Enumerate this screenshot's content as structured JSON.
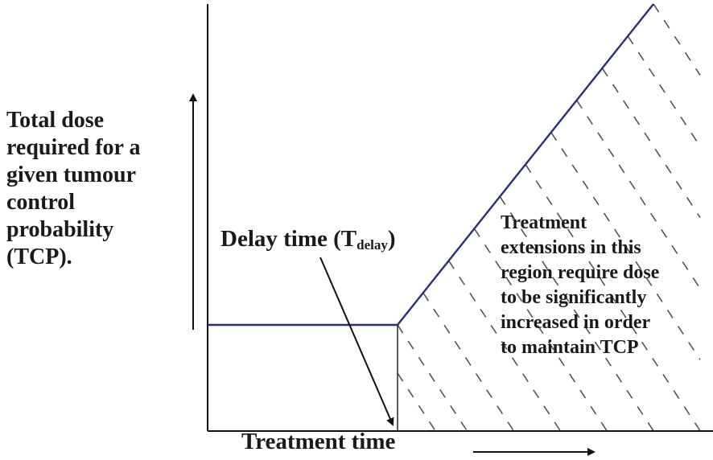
{
  "diagram": {
    "y_axis_label_lines": [
      "Total dose",
      "required for a",
      "given tumour",
      "control",
      "probability",
      "(TCP)."
    ],
    "x_axis_label": "Treatment time",
    "delay_label": {
      "main": "Delay time (T",
      "subscript": "delay",
      "close": ")"
    },
    "region_label_lines": [
      "Treatment",
      "extensions in this",
      "region require dose",
      "to be significantly",
      "increased in order",
      "to maintain TCP"
    ],
    "colors": {
      "curve": "#2b2f7a",
      "axes": "#111111",
      "hatch": "#555555",
      "text": "#1a1a1a"
    }
  }
}
